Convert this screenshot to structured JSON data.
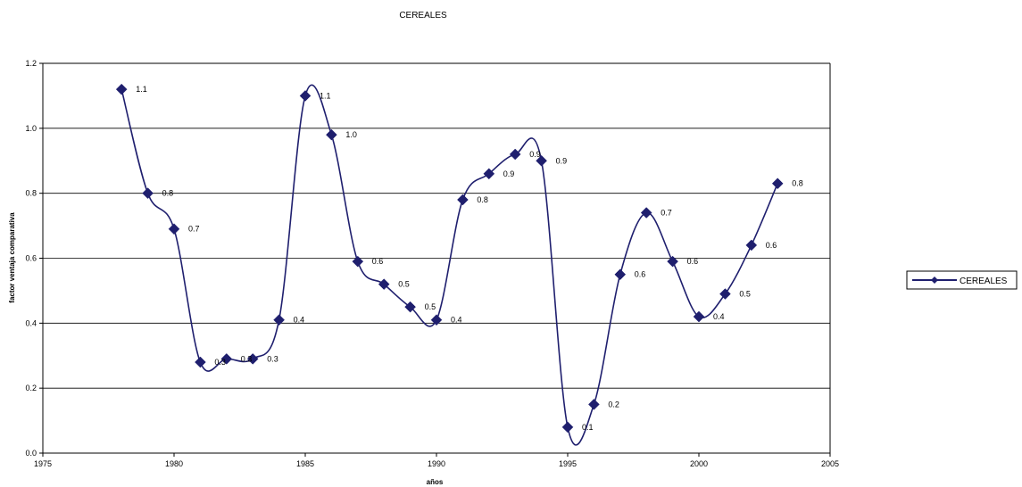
{
  "chart_data": {
    "type": "line",
    "title": "CEREALES",
    "xlabel": "años",
    "ylabel": "factor ventaja comparativa",
    "xlim": [
      1975,
      2005
    ],
    "ylim": [
      0,
      1.2
    ],
    "x_ticks": [
      "1975",
      "1980",
      "1985",
      "1990",
      "1995",
      "2000",
      "2005"
    ],
    "y_ticks": [
      "0.0",
      "0.2",
      "0.4",
      "0.6",
      "0.8",
      "1.0",
      "1.2"
    ],
    "grid": "horizontal",
    "legend": "right",
    "series": [
      {
        "name": "CEREALES",
        "color": "#1f1f6e",
        "marker": "diamond",
        "smooth": true,
        "x": [
          1978,
          1979,
          1980,
          1981,
          1982,
          1983,
          1984,
          1985,
          1986,
          1987,
          1988,
          1989,
          1990,
          1991,
          1992,
          1993,
          1994,
          1995,
          1996,
          1997,
          1998,
          1999,
          2000,
          2001,
          2002,
          2003
        ],
        "y": [
          1.12,
          0.8,
          0.69,
          0.28,
          0.29,
          0.29,
          0.41,
          1.1,
          0.98,
          0.59,
          0.52,
          0.45,
          0.41,
          0.78,
          0.86,
          0.92,
          0.9,
          0.08,
          0.15,
          0.55,
          0.74,
          0.59,
          0.42,
          0.49,
          0.64,
          0.83
        ],
        "labels": [
          "1.1",
          "0.8",
          "0.7",
          "0.3",
          "0.3",
          "0.3",
          "0.4",
          "1.1",
          "1.0",
          "0.6",
          "0.5",
          "0.5",
          "0.4",
          "0.8",
          "0.9",
          "0.9",
          "0.9",
          "0.1",
          "0.2",
          "0.6",
          "0.7",
          "0.6",
          "0.4",
          "0.5",
          "0.6",
          "0.8"
        ]
      }
    ]
  }
}
